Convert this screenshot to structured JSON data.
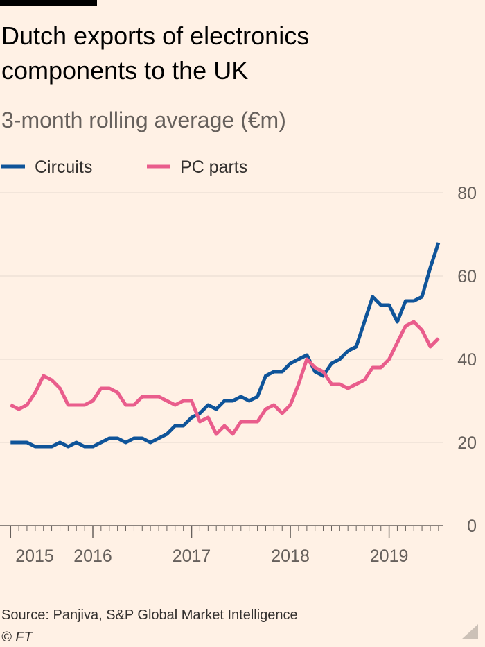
{
  "chart_data": {
    "type": "line",
    "title": "Dutch exports of electronics components to the UK",
    "title_lines": [
      "Dutch exports of electronics",
      "components to the UK"
    ],
    "subtitle": "3-month rolling average (€m)",
    "source": "Source: Panjiva, S&P Global Market Intelligence",
    "credit": "© FT",
    "x": [
      2015.167,
      2015.25,
      2015.333,
      2015.417,
      2015.5,
      2015.583,
      2015.667,
      2015.75,
      2015.833,
      2015.917,
      2016.0,
      2016.083,
      2016.167,
      2016.25,
      2016.333,
      2016.417,
      2016.5,
      2016.583,
      2016.667,
      2016.75,
      2016.833,
      2016.917,
      2017.0,
      2017.083,
      2017.167,
      2017.25,
      2017.333,
      2017.417,
      2017.5,
      2017.583,
      2017.667,
      2017.75,
      2017.833,
      2017.917,
      2018.0,
      2018.083,
      2018.167,
      2018.25,
      2018.333,
      2018.417,
      2018.5,
      2018.583,
      2018.667,
      2018.75,
      2018.833,
      2018.917,
      2019.0,
      2019.083,
      2019.167,
      2019.25,
      2019.333,
      2019.417,
      2019.5
    ],
    "series": [
      {
        "name": "Circuits",
        "color": "#0f5499",
        "values": [
          20,
          20,
          20,
          19,
          19,
          19,
          20,
          19,
          20,
          19,
          19,
          20,
          21,
          21,
          20,
          21,
          21,
          20,
          21,
          22,
          24,
          24,
          26,
          27,
          29,
          28,
          30,
          30,
          31,
          30,
          31,
          36,
          37,
          37,
          39,
          40,
          41,
          37,
          36,
          39,
          40,
          42,
          43,
          49,
          55,
          53,
          53,
          49,
          54,
          54,
          55,
          62,
          68
        ]
      },
      {
        "name": "PC parts",
        "color": "#e95d8c",
        "values": [
          29,
          28,
          29,
          32,
          36,
          35,
          33,
          29,
          29,
          29,
          30,
          33,
          33,
          32,
          29,
          29,
          31,
          31,
          31,
          30,
          29,
          30,
          30,
          25,
          26,
          22,
          24,
          22,
          25,
          25,
          25,
          28,
          29,
          27,
          29,
          34,
          40,
          38,
          37,
          34,
          34,
          33,
          34,
          35,
          38,
          38,
          40,
          44,
          48,
          49,
          47,
          43,
          45
        ]
      }
    ],
    "xlim": [
      2015.13,
      2019.55
    ],
    "xticks": [
      {
        "value": 2015.167,
        "label": "2015"
      },
      2016,
      2017,
      2018,
      2019
    ],
    "ylim": [
      0,
      80
    ],
    "yticks": [
      0,
      20,
      40,
      60,
      80
    ],
    "grid": true,
    "legend": "top"
  }
}
